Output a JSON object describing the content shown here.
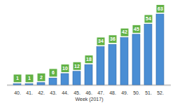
{
  "chart_data": {
    "type": "bar",
    "x_label": "Week (2017)",
    "categories": [
      "40.",
      "41.",
      "42.",
      "43.",
      "44.",
      "45.",
      "46.",
      "47.",
      "48.",
      "49.",
      "50.",
      "51.",
      "52."
    ],
    "values": [
      1,
      1,
      2,
      6,
      10,
      12,
      18,
      34,
      36,
      42,
      45,
      54,
      63
    ],
    "color": "#4a8ed4",
    "data_labels": true,
    "tick_labels": "x",
    "grid": false
  }
}
